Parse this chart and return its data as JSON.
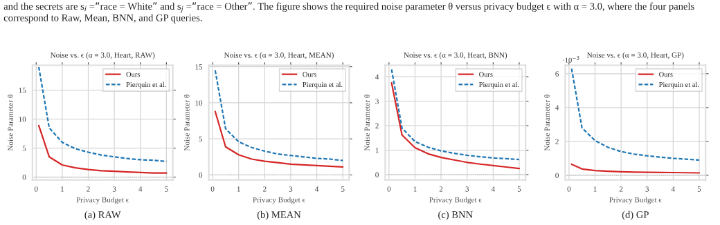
{
  "chart_data": [
    {
      "type": "line",
      "title": "Noise vs. ϵ (α = 3.0, Heart, RAW)",
      "subtitle": "and the secrets are s$_{i}$ =“race = White” and s$_{j}$ =“race = Other”. The figure shows the required noise parameter θ versus privacy budget ϵ with α = 3.0, where the four panels correspond to Raw, Mean, BNN, and GP queries.",
      "xlabel": "Privacy Budget ϵ",
      "ylabel": "Noise Parameter θ",
      "annotations": [
        "(a) RAW"
      ],
      "x": [
        0.1,
        0.5,
        1,
        1.5,
        2,
        2.5,
        3,
        3.5,
        4,
        4.5,
        5
      ],
      "series": [
        {
          "name": "Ours",
          "color": "#d62728",
          "line_style": "solid",
          "values": [
            8.9,
            3.5,
            2.1,
            1.6,
            1.3,
            1.1,
            1.0,
            0.9,
            0.8,
            0.7,
            0.7
          ]
        },
        {
          "name": "Pierquin et al.",
          "color": "#1f77b4",
          "line_style": "dashed",
          "values": [
            19,
            8.5,
            6.0,
            4.9,
            4.3,
            3.8,
            3.5,
            3.2,
            3.0,
            2.9,
            2.7
          ]
        }
      ],
      "xlim": [
        -0.145,
        5.245
      ],
      "xticks": [
        0,
        1,
        2,
        3,
        4,
        5
      ],
      "ylim": [
        -0.5,
        19.3
      ],
      "yticks": [
        0,
        5,
        10,
        15
      ],
      "ref_lines": [
        {
          "axis": "y",
          "value": 0,
          "color": "#aaaaaa",
          "line_style": "dotted"
        }
      ],
      "grid": true,
      "legend": "top right"
    },
    {
      "type": "line",
      "title": "Noise vs. ϵ (α = 3.0, Heart, MEAN)",
      "xlabel": "Privacy Budget ϵ",
      "ylabel": "Noise Parameter θ",
      "annotations": [
        "(b) MEAN"
      ],
      "x": [
        0.1,
        0.5,
        1,
        1.5,
        2,
        2.5,
        3,
        3.5,
        4,
        4.5,
        5
      ],
      "series": [
        {
          "name": "Ours",
          "color": "#d62728",
          "line_style": "solid",
          "values": [
            8.8,
            3.9,
            2.8,
            2.2,
            1.9,
            1.7,
            1.5,
            1.4,
            1.3,
            1.2,
            1.1
          ]
        },
        {
          "name": "Pierquin et al.",
          "color": "#1f77b4",
          "line_style": "dashed",
          "values": [
            14.5,
            6.4,
            4.6,
            3.8,
            3.3,
            2.9,
            2.7,
            2.5,
            2.3,
            2.2,
            2.0
          ]
        }
      ],
      "xlim": [
        -0.145,
        5.245
      ],
      "xticks": [
        0,
        1,
        2,
        3,
        4,
        5
      ],
      "ylim": [
        -0.7,
        15.2
      ],
      "yticks": [
        0,
        5,
        10,
        15
      ],
      "ref_lines": [
        {
          "axis": "y",
          "value": 0,
          "color": "#aaaaaa",
          "line_style": "dotted"
        }
      ],
      "grid": true,
      "legend": "top right"
    },
    {
      "type": "line",
      "title": "Noise vs. ϵ (α = 3.0, Heart, BNN)",
      "xlabel": "Privacy Budget ϵ",
      "ylabel": "Noise Parameter θ",
      "annotations": [
        "(c) BNN"
      ],
      "x": [
        0.1,
        0.5,
        1,
        1.5,
        2,
        2.5,
        3,
        3.5,
        4,
        4.5,
        5
      ],
      "series": [
        {
          "name": "Ours",
          "color": "#d62728",
          "line_style": "solid",
          "values": [
            3.75,
            1.62,
            1.1,
            0.85,
            0.7,
            0.6,
            0.5,
            0.43,
            0.37,
            0.31,
            0.25
          ]
        },
        {
          "name": "Pierquin et al.",
          "color": "#1f77b4",
          "line_style": "dashed",
          "values": [
            4.3,
            1.9,
            1.35,
            1.12,
            0.97,
            0.87,
            0.79,
            0.73,
            0.68,
            0.65,
            0.62
          ]
        }
      ],
      "xlim": [
        -0.145,
        5.245
      ],
      "xticks": [
        0,
        1,
        2,
        3,
        4,
        5
      ],
      "ylim": [
        -0.22,
        4.47
      ],
      "yticks": [
        0,
        1,
        2,
        3,
        4
      ],
      "ref_lines": [
        {
          "axis": "y",
          "value": 0,
          "color": "#aaaaaa",
          "line_style": "dotted"
        }
      ],
      "grid": true,
      "legend": "top right"
    },
    {
      "type": "line",
      "title": "Noise vs. ϵ (α = 3.0, Heart, GP)",
      "xlabel": "Privacy Budget ϵ",
      "ylabel": "Noise Parameter θ",
      "annotations": [
        "(d) GP",
        "·10$^{−3}$"
      ],
      "x": [
        0.1,
        0.5,
        1,
        1.5,
        2,
        2.5,
        3,
        3.5,
        4,
        4.5,
        5
      ],
      "series": [
        {
          "name": "Ours",
          "color": "#d62728",
          "line_style": "solid",
          "values": [
            0.65,
            0.37,
            0.28,
            0.24,
            0.21,
            0.19,
            0.18,
            0.17,
            0.16,
            0.15,
            0.14
          ]
        },
        {
          "name": "Pierquin et al.",
          "color": "#1f77b4",
          "line_style": "dashed",
          "values": [
            6.3,
            2.8,
            2.05,
            1.65,
            1.4,
            1.25,
            1.15,
            1.07,
            1.0,
            0.95,
            0.9
          ]
        }
      ],
      "xlim": [
        -0.145,
        5.245
      ],
      "xticks": [
        0,
        1,
        2,
        3,
        4,
        5
      ],
      "ylim": [
        -0.28,
        6.5
      ],
      "yticks": [
        0,
        2,
        4,
        6
      ],
      "ref_lines": [
        {
          "axis": "y",
          "value": 0,
          "color": "#aaaaaa",
          "line_style": "dotted"
        }
      ],
      "grid": true,
      "legend": "top right"
    }
  ]
}
